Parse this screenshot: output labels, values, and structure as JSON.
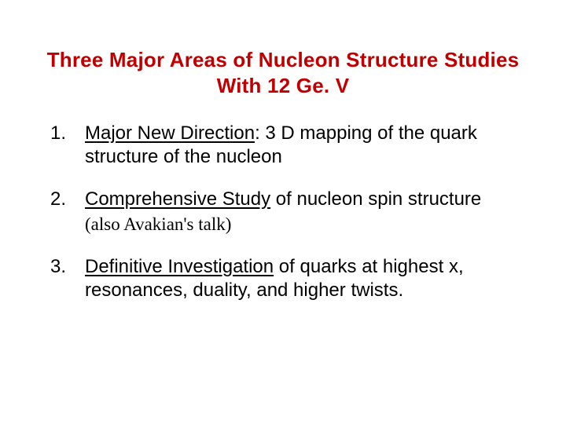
{
  "title_color": "#c00000",
  "body_color": "#000000",
  "title": "Three Major Areas of Nucleon Structure Studies With 12 Ge. V",
  "items": [
    {
      "lead": "Major New Direction",
      "rest": ": 3 D mapping of the quark structure of the nucleon",
      "sub": ""
    },
    {
      "lead": "Comprehensive Study",
      "rest": " of nucleon spin structure",
      "sub": "(also Avakian's talk)"
    },
    {
      "lead": "Definitive Investigation",
      "rest": " of  quarks at highest x, resonances, duality, and higher twists.",
      "sub": ""
    }
  ]
}
